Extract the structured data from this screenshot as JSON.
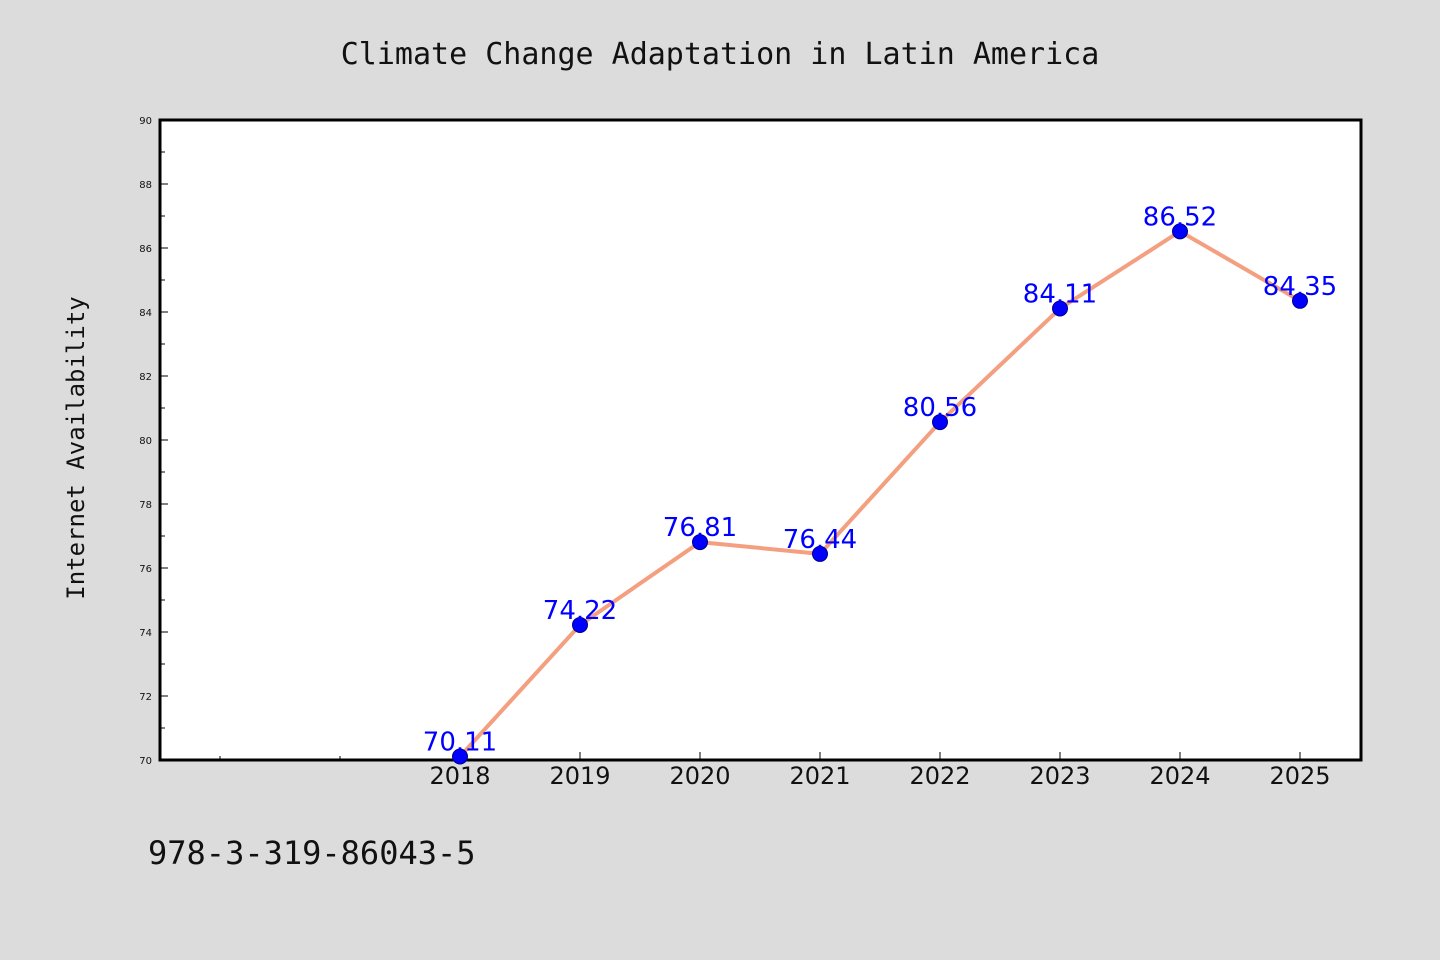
{
  "chart_data": {
    "type": "line",
    "title": "Climate Change Adaptation in Latin America",
    "xlabel": "",
    "ylabel": "Internet Availability",
    "categories": [
      "2018",
      "2019",
      "2020",
      "2021",
      "2022",
      "2023",
      "2024",
      "2025"
    ],
    "series": [
      {
        "values": [
          70.11,
          74.22,
          76.81,
          76.44,
          80.56,
          84.11,
          86.52,
          84.35
        ]
      }
    ],
    "data_labels": [
      "70.11",
      "74.22",
      "76.81",
      "76.44",
      "80.56",
      "84.11",
      "86.52",
      "84.35"
    ],
    "ylim": [
      70,
      90
    ],
    "yticks": [
      70,
      72,
      74,
      76,
      78,
      80,
      82,
      84,
      86,
      88,
      90
    ],
    "grid": false,
    "legend": "none",
    "colors": {
      "line": "#f4a080",
      "marker": "#0000ff",
      "label": "#0000ff",
      "background": "#dcdcdc",
      "plot_background": "#ffffff"
    }
  },
  "footnote": "978-3-319-86043-5"
}
